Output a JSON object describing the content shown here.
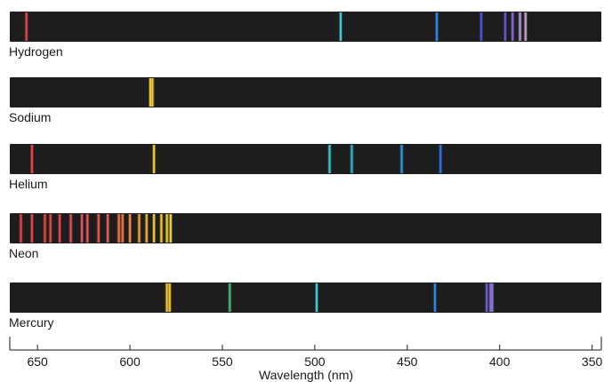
{
  "chart_data": {
    "type": "line",
    "xlabel": "Wavelength (nm)",
    "x_ticks": [
      650,
      600,
      550,
      500,
      450,
      400,
      350
    ],
    "xlim": [
      665,
      345
    ],
    "background_color": "#1d1d1d",
    "spectra": [
      {
        "name": "Hydrogen",
        "lines": [
          {
            "wavelength": 656,
            "color": "#e8434f"
          },
          {
            "wavelength": 486,
            "color": "#3fc8d4"
          },
          {
            "wavelength": 434,
            "color": "#2f86e8"
          },
          {
            "wavelength": 410,
            "color": "#4b56d8"
          },
          {
            "wavelength": 397,
            "color": "#6a54cf"
          },
          {
            "wavelength": 393,
            "color": "#8a68d9"
          },
          {
            "wavelength": 389,
            "color": "#b39ad9"
          },
          {
            "wavelength": 386,
            "color": "#c8a1d5"
          }
        ]
      },
      {
        "name": "Sodium",
        "lines": [
          {
            "wavelength": 589.0,
            "color": "#f2c63a"
          },
          {
            "wavelength": 587.8,
            "color": "#f2c63a"
          }
        ]
      },
      {
        "name": "Helium",
        "lines": [
          {
            "wavelength": 653,
            "color": "#e8434f"
          },
          {
            "wavelength": 587,
            "color": "#f2c63a"
          },
          {
            "wavelength": 492,
            "color": "#3fc8d4"
          },
          {
            "wavelength": 480,
            "color": "#33b3cf"
          },
          {
            "wavelength": 453,
            "color": "#2c9be2"
          },
          {
            "wavelength": 432,
            "color": "#2b77e0"
          }
        ]
      },
      {
        "name": "Neon",
        "lines": [
          {
            "wavelength": 659,
            "color": "#e8434f"
          },
          {
            "wavelength": 653,
            "color": "#e8434f"
          },
          {
            "wavelength": 646,
            "color": "#e84a4a"
          },
          {
            "wavelength": 643,
            "color": "#e84a4a"
          },
          {
            "wavelength": 638,
            "color": "#e8434f"
          },
          {
            "wavelength": 632,
            "color": "#e35062"
          },
          {
            "wavelength": 626,
            "color": "#e35062"
          },
          {
            "wavelength": 623,
            "color": "#e85a52"
          },
          {
            "wavelength": 617,
            "color": "#e85a52"
          },
          {
            "wavelength": 612,
            "color": "#e36758"
          },
          {
            "wavelength": 606,
            "color": "#f07a47"
          },
          {
            "wavelength": 604,
            "color": "#f07a47"
          },
          {
            "wavelength": 600,
            "color": "#f28c45"
          },
          {
            "wavelength": 595,
            "color": "#f0a23f"
          },
          {
            "wavelength": 591,
            "color": "#f0b03e"
          },
          {
            "wavelength": 587,
            "color": "#f2c63a"
          },
          {
            "wavelength": 583,
            "color": "#f3ca3c"
          },
          {
            "wavelength": 580,
            "color": "#f3ca3c"
          },
          {
            "wavelength": 578,
            "color": "#f3d642"
          }
        ]
      },
      {
        "name": "Mercury",
        "lines": [
          {
            "wavelength": 580,
            "color": "#f2c63a"
          },
          {
            "wavelength": 578.5,
            "color": "#f2c63a"
          },
          {
            "wavelength": 546,
            "color": "#4bb67a"
          },
          {
            "wavelength": 499,
            "color": "#3fc8d4"
          },
          {
            "wavelength": 435,
            "color": "#2f86e8"
          },
          {
            "wavelength": 407,
            "color": "#6e5ecf"
          },
          {
            "wavelength": 405,
            "color": "#8a68d9"
          },
          {
            "wavelength": 404,
            "color": "#8b7ad8"
          }
        ]
      }
    ]
  }
}
